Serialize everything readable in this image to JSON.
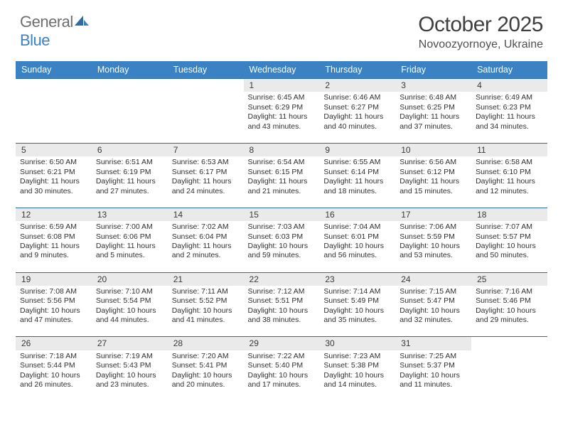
{
  "logo": {
    "gray": "General",
    "blue": "Blue"
  },
  "title": "October 2025",
  "subtitle": "Novoozyornoye, Ukraine",
  "colors": {
    "header_bg": "#3b82c4",
    "header_text": "#ffffff",
    "daynum_bg": "#eaeaea",
    "row_border": "#2f6aa0",
    "text": "#303030"
  },
  "weekdays": [
    "Sunday",
    "Monday",
    "Tuesday",
    "Wednesday",
    "Thursday",
    "Friday",
    "Saturday"
  ],
  "weeks": [
    {
      "days": [
        null,
        null,
        null,
        {
          "n": "1",
          "sr": "6:45 AM",
          "ss": "6:29 PM",
          "dl": "11 hours and 43 minutes."
        },
        {
          "n": "2",
          "sr": "6:46 AM",
          "ss": "6:27 PM",
          "dl": "11 hours and 40 minutes."
        },
        {
          "n": "3",
          "sr": "6:48 AM",
          "ss": "6:25 PM",
          "dl": "11 hours and 37 minutes."
        },
        {
          "n": "4",
          "sr": "6:49 AM",
          "ss": "6:23 PM",
          "dl": "11 hours and 34 minutes."
        }
      ]
    },
    {
      "days": [
        {
          "n": "5",
          "sr": "6:50 AM",
          "ss": "6:21 PM",
          "dl": "11 hours and 30 minutes."
        },
        {
          "n": "6",
          "sr": "6:51 AM",
          "ss": "6:19 PM",
          "dl": "11 hours and 27 minutes."
        },
        {
          "n": "7",
          "sr": "6:53 AM",
          "ss": "6:17 PM",
          "dl": "11 hours and 24 minutes."
        },
        {
          "n": "8",
          "sr": "6:54 AM",
          "ss": "6:15 PM",
          "dl": "11 hours and 21 minutes."
        },
        {
          "n": "9",
          "sr": "6:55 AM",
          "ss": "6:14 PM",
          "dl": "11 hours and 18 minutes."
        },
        {
          "n": "10",
          "sr": "6:56 AM",
          "ss": "6:12 PM",
          "dl": "11 hours and 15 minutes."
        },
        {
          "n": "11",
          "sr": "6:58 AM",
          "ss": "6:10 PM",
          "dl": "11 hours and 12 minutes."
        }
      ]
    },
    {
      "days": [
        {
          "n": "12",
          "sr": "6:59 AM",
          "ss": "6:08 PM",
          "dl": "11 hours and 9 minutes."
        },
        {
          "n": "13",
          "sr": "7:00 AM",
          "ss": "6:06 PM",
          "dl": "11 hours and 5 minutes."
        },
        {
          "n": "14",
          "sr": "7:02 AM",
          "ss": "6:04 PM",
          "dl": "11 hours and 2 minutes."
        },
        {
          "n": "15",
          "sr": "7:03 AM",
          "ss": "6:03 PM",
          "dl": "10 hours and 59 minutes."
        },
        {
          "n": "16",
          "sr": "7:04 AM",
          "ss": "6:01 PM",
          "dl": "10 hours and 56 minutes."
        },
        {
          "n": "17",
          "sr": "7:06 AM",
          "ss": "5:59 PM",
          "dl": "10 hours and 53 minutes."
        },
        {
          "n": "18",
          "sr": "7:07 AM",
          "ss": "5:57 PM",
          "dl": "10 hours and 50 minutes."
        }
      ]
    },
    {
      "days": [
        {
          "n": "19",
          "sr": "7:08 AM",
          "ss": "5:56 PM",
          "dl": "10 hours and 47 minutes."
        },
        {
          "n": "20",
          "sr": "7:10 AM",
          "ss": "5:54 PM",
          "dl": "10 hours and 44 minutes."
        },
        {
          "n": "21",
          "sr": "7:11 AM",
          "ss": "5:52 PM",
          "dl": "10 hours and 41 minutes."
        },
        {
          "n": "22",
          "sr": "7:12 AM",
          "ss": "5:51 PM",
          "dl": "10 hours and 38 minutes."
        },
        {
          "n": "23",
          "sr": "7:14 AM",
          "ss": "5:49 PM",
          "dl": "10 hours and 35 minutes."
        },
        {
          "n": "24",
          "sr": "7:15 AM",
          "ss": "5:47 PM",
          "dl": "10 hours and 32 minutes."
        },
        {
          "n": "25",
          "sr": "7:16 AM",
          "ss": "5:46 PM",
          "dl": "10 hours and 29 minutes."
        }
      ]
    },
    {
      "days": [
        {
          "n": "26",
          "sr": "7:18 AM",
          "ss": "5:44 PM",
          "dl": "10 hours and 26 minutes."
        },
        {
          "n": "27",
          "sr": "7:19 AM",
          "ss": "5:43 PM",
          "dl": "10 hours and 23 minutes."
        },
        {
          "n": "28",
          "sr": "7:20 AM",
          "ss": "5:41 PM",
          "dl": "10 hours and 20 minutes."
        },
        {
          "n": "29",
          "sr": "7:22 AM",
          "ss": "5:40 PM",
          "dl": "10 hours and 17 minutes."
        },
        {
          "n": "30",
          "sr": "7:23 AM",
          "ss": "5:38 PM",
          "dl": "10 hours and 14 minutes."
        },
        {
          "n": "31",
          "sr": "7:25 AM",
          "ss": "5:37 PM",
          "dl": "10 hours and 11 minutes."
        },
        null
      ]
    }
  ]
}
